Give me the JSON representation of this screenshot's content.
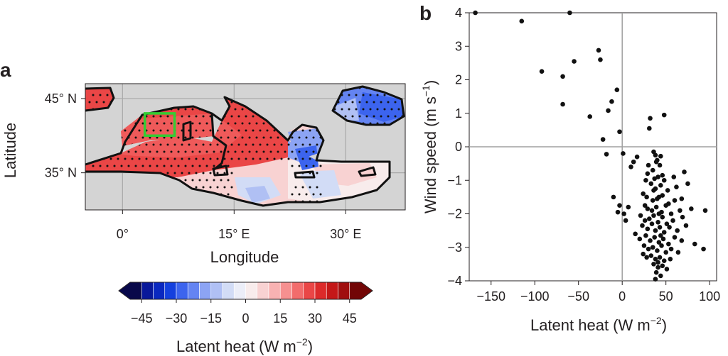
{
  "panel_a": {
    "letter": "a",
    "xlabel": "Longitude",
    "ylabel": "Latitude",
    "xticks": [
      {
        "value": 0,
        "label": "0°"
      },
      {
        "value": 15,
        "label": "15° E"
      },
      {
        "value": 30,
        "label": "30° E"
      }
    ],
    "yticks": [
      {
        "value": 45,
        "label": "45° N"
      },
      {
        "value": 35,
        "label": "35° N"
      }
    ],
    "xlim": [
      -5,
      38
    ],
    "ylim": [
      30,
      47
    ],
    "land_color": "#d4d4d4",
    "box_color": "#33cc33",
    "box": {
      "lon": [
        3,
        7
      ],
      "lat": [
        40,
        43
      ]
    }
  },
  "colorbar": {
    "title": "Latent heat (W m",
    "title_sup": "−2",
    "title_end": ")",
    "min": -50,
    "max": 50,
    "step": 5,
    "ticks": [
      {
        "value": -45,
        "label": "−45"
      },
      {
        "value": -30,
        "label": "−30"
      },
      {
        "value": -15,
        "label": "−15"
      },
      {
        "value": 0,
        "label": "0"
      },
      {
        "value": 15,
        "label": "15"
      },
      {
        "value": 30,
        "label": "30"
      },
      {
        "value": 45,
        "label": "45"
      }
    ],
    "colors": [
      "#08084a",
      "#08189a",
      "#0a28c0",
      "#1440de",
      "#3c64ee",
      "#6484f2",
      "#8ca4f4",
      "#b0c0f4",
      "#d2dcf6",
      "#eceef8",
      "#f8ecec",
      "#f8d2d2",
      "#f8b2b2",
      "#f69090",
      "#f26c6c",
      "#ea4646",
      "#dc2a2a",
      "#c41818",
      "#a00e0e",
      "#720606"
    ]
  },
  "chart_data": {
    "type": "scatter",
    "panel_letter": "b",
    "xlabel": "Latent heat (W m",
    "xlabel_sup": "−2",
    "xlabel_end": ")",
    "ylabel": "Wind speed (m s",
    "ylabel_sup": "−1",
    "ylabel_end": ")",
    "xlim": [
      -175,
      108
    ],
    "ylim": [
      -4,
      4
    ],
    "xticks": [
      -150,
      -100,
      -50,
      0,
      50,
      100
    ],
    "yticks": [
      -4,
      -3,
      -2,
      -1,
      0,
      1,
      2,
      3,
      4
    ],
    "reference_lines": {
      "x": 0,
      "y": 0
    },
    "points": [
      [
        -168,
        4.0
      ],
      [
        -60,
        4.0
      ],
      [
        -115,
        3.75
      ],
      [
        -27,
        2.88
      ],
      [
        -25,
        2.6
      ],
      [
        -55,
        2.55
      ],
      [
        -92,
        2.25
      ],
      [
        -68,
        2.1
      ],
      [
        -68,
        1.27
      ],
      [
        -6,
        1.7
      ],
      [
        -12,
        1.35
      ],
      [
        -37,
        0.9
      ],
      [
        -16,
        1.08
      ],
      [
        -3,
        0.45
      ],
      [
        31,
        0.55
      ],
      [
        32,
        0.85
      ],
      [
        48,
        0.95
      ],
      [
        -22,
        0.22
      ],
      [
        -18,
        -0.22
      ],
      [
        1,
        -0.2
      ],
      [
        17,
        -0.3
      ],
      [
        36,
        -0.15
      ],
      [
        38,
        -0.25
      ],
      [
        40,
        -0.4
      ],
      [
        43,
        -0.55
      ],
      [
        44,
        -0.28
      ],
      [
        13,
        -0.45
      ],
      [
        10,
        -0.6
      ],
      [
        30,
        -0.55
      ],
      [
        29,
        -0.8
      ],
      [
        35,
        -0.7
      ],
      [
        41,
        -0.9
      ],
      [
        46,
        -0.85
      ],
      [
        48,
        -1.0
      ],
      [
        59,
        -0.9
      ],
      [
        71,
        -0.75
      ],
      [
        27,
        -1.0
      ],
      [
        33,
        -1.1
      ],
      [
        36,
        -1.3
      ],
      [
        38,
        -1.25
      ],
      [
        44,
        -1.15
      ],
      [
        52,
        -1.3
      ],
      [
        62,
        -1.2
      ],
      [
        75,
        -1.1
      ],
      [
        24,
        -1.4
      ],
      [
        28,
        -1.5
      ],
      [
        35,
        -1.6
      ],
      [
        42,
        -1.5
      ],
      [
        46,
        -1.45
      ],
      [
        53,
        -1.7
      ],
      [
        60,
        -1.6
      ],
      [
        68,
        -1.55
      ],
      [
        -10,
        -1.5
      ],
      [
        -3,
        -1.75
      ],
      [
        7,
        -1.8
      ],
      [
        26,
        -1.75
      ],
      [
        29,
        -1.85
      ],
      [
        34,
        -1.9
      ],
      [
        39,
        -1.8
      ],
      [
        45,
        -1.95
      ],
      [
        50,
        -1.75
      ],
      [
        56,
        -2.0
      ],
      [
        66,
        -1.9
      ],
      [
        79,
        -1.85
      ],
      [
        95,
        -1.9
      ],
      [
        -5,
        -1.95
      ],
      [
        2,
        -2.0
      ],
      [
        4,
        -2.2
      ],
      [
        21,
        -2.05
      ],
      [
        26,
        -2.2
      ],
      [
        31,
        -2.15
      ],
      [
        36,
        -2.05
      ],
      [
        41,
        -2.25
      ],
      [
        46,
        -2.1
      ],
      [
        51,
        -2.3
      ],
      [
        58,
        -2.2
      ],
      [
        69,
        -2.1
      ],
      [
        23,
        -2.35
      ],
      [
        29,
        -2.45
      ],
      [
        34,
        -2.3
      ],
      [
        38,
        -2.5
      ],
      [
        43,
        -2.4
      ],
      [
        48,
        -2.55
      ],
      [
        54,
        -2.4
      ],
      [
        63,
        -2.5
      ],
      [
        73,
        -2.35
      ],
      [
        15,
        -2.6
      ],
      [
        20,
        -2.75
      ],
      [
        27,
        -2.65
      ],
      [
        32,
        -2.8
      ],
      [
        37,
        -2.7
      ],
      [
        42,
        -2.85
      ],
      [
        47,
        -2.75
      ],
      [
        53,
        -2.9
      ],
      [
        60,
        -2.7
      ],
      [
        68,
        -2.8
      ],
      [
        83,
        -2.9
      ],
      [
        93,
        -3.05
      ],
      [
        25,
        -2.95
      ],
      [
        30,
        -3.05
      ],
      [
        35,
        -3.0
      ],
      [
        40,
        -3.1
      ],
      [
        45,
        -2.95
      ],
      [
        50,
        -3.15
      ],
      [
        56,
        -3.05
      ],
      [
        64,
        -3.15
      ],
      [
        24,
        -3.2
      ],
      [
        28,
        -3.3
      ],
      [
        33,
        -3.25
      ],
      [
        38,
        -3.35
      ],
      [
        43,
        -3.3
      ],
      [
        48,
        -3.4
      ],
      [
        55,
        -3.35
      ],
      [
        36,
        -3.5
      ],
      [
        41,
        -3.6
      ],
      [
        46,
        -3.55
      ],
      [
        51,
        -3.65
      ],
      [
        39,
        -3.75
      ],
      [
        44,
        -3.85
      ],
      [
        38,
        -3.95
      ],
      [
        39,
        -0.45
      ],
      [
        37,
        -0.95
      ],
      [
        40,
        -1.55
      ],
      [
        42,
        -2.0
      ],
      [
        44,
        -2.65
      ],
      [
        41,
        -3.45
      ]
    ]
  }
}
